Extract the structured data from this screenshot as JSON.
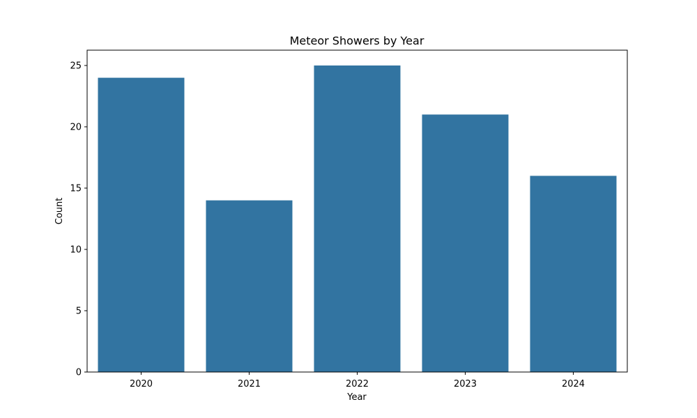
{
  "chart_data": {
    "type": "bar",
    "title": "Meteor Showers by Year",
    "xlabel": "Year",
    "ylabel": "Count",
    "categories": [
      "2020",
      "2021",
      "2022",
      "2023",
      "2024"
    ],
    "values": [
      24,
      14,
      25,
      21,
      16
    ],
    "ylim": [
      0,
      26.25
    ],
    "yticks": [
      0,
      5,
      10,
      15,
      20,
      25
    ],
    "bar_color": "#3274a1",
    "grid": false,
    "legend": "none"
  }
}
